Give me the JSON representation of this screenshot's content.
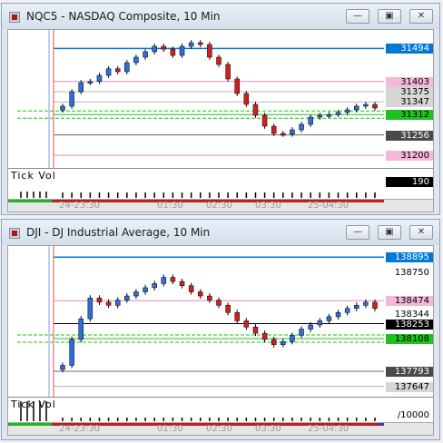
{
  "windows": [
    {
      "title": "NQC5 - NASDAQ Composite, 10 Min",
      "controls": [
        "minimize",
        "restore",
        "close"
      ],
      "price_axis": [
        {
          "value": "31494",
          "bg": "#0078d7",
          "fg": "#ffffff"
        },
        {
          "value": "31403",
          "bg": "#f4b8d8",
          "fg": "#000000"
        },
        {
          "value": "31375",
          "bg": "#d6d6d6",
          "fg": "#000000"
        },
        {
          "value": "31347",
          "bg": "#d6d6d6",
          "fg": "#000000"
        },
        {
          "value": "31312",
          "bg": "#1fc21f",
          "fg": "#000000"
        },
        {
          "value": "31256",
          "bg": "#4a4a4a",
          "fg": "#ffffff"
        },
        {
          "value": "31200",
          "bg": "#f4b8d8",
          "fg": "#000000"
        }
      ],
      "indicator": {
        "label": "Tick Vol",
        "value": "190"
      },
      "time_labels": [
        "24-23:30",
        "01:30",
        "02:30",
        "03:30",
        "25-04:30"
      ],
      "chart_data": {
        "type": "candlestick",
        "series": [
          {
            "values": [
              31335,
              31375,
              31400,
              31403,
              31420,
              31438,
              31430,
              31455,
              31470,
              31485,
              31500,
              31492,
              31475,
              31500,
              31510,
              31505,
              31470,
              31450,
              31410,
              31370,
              31340,
              31310,
              31280,
              31260,
              31258,
              31270,
              31285,
              31305,
              31310,
              31312,
              31318,
              31325,
              31335,
              31340,
              31330
            ]
          }
        ],
        "ylim": [
          31180,
          31530
        ],
        "levels": [
          31494,
          31403,
          31375,
          31347,
          31312,
          31256,
          31200
        ]
      },
      "colors": {
        "up": "#2e6fd8",
        "down": "#d21f1f"
      }
    },
    {
      "title": "DJI - DJ Industrial Average, 10 Min",
      "controls": [
        "minimize",
        "restore",
        "close"
      ],
      "price_axis": [
        {
          "value": "138895",
          "bg": "#0078d7",
          "fg": "#ffffff"
        },
        {
          "value": "138750",
          "bg": "#ffffff",
          "fg": "#000000"
        },
        {
          "value": "138474",
          "bg": "#f4b8d8",
          "fg": "#000000"
        },
        {
          "value": "138344",
          "bg": "#ffffff",
          "fg": "#000000"
        },
        {
          "value": "138253",
          "bg": "#000000",
          "fg": "#ffffff"
        },
        {
          "value": "138108",
          "bg": "#1fc21f",
          "fg": "#000000"
        },
        {
          "value": "137793",
          "bg": "#4a4a4a",
          "fg": "#ffffff"
        },
        {
          "value": "137647",
          "bg": "#d6d6d6",
          "fg": "#000000"
        }
      ],
      "indicator": {
        "label": "Tick Vol",
        "value": "/10000"
      },
      "time_labels": [
        "24-23:30",
        "01:30",
        "02:30",
        "03:30",
        "25-04:30"
      ],
      "chart_data": {
        "type": "candlestick",
        "series": [
          {
            "values": [
              137850,
              138100,
              138300,
              138500,
              138460,
              138430,
              138480,
              138520,
              138560,
              138600,
              138640,
              138700,
              138660,
              138620,
              138560,
              138520,
              138480,
              138430,
              138360,
              138280,
              138220,
              138160,
              138100,
              138050,
              138080,
              138140,
              138200,
              138240,
              138280,
              138320,
              138360,
              138400,
              138430,
              138460,
              138400
            ]
          }
        ],
        "ylim": [
          137600,
          138950
        ],
        "levels": [
          138895,
          138474,
          138253,
          138108,
          137793
        ]
      },
      "colors": {
        "up": "#2e6fd8",
        "down": "#d21f1f"
      }
    }
  ]
}
